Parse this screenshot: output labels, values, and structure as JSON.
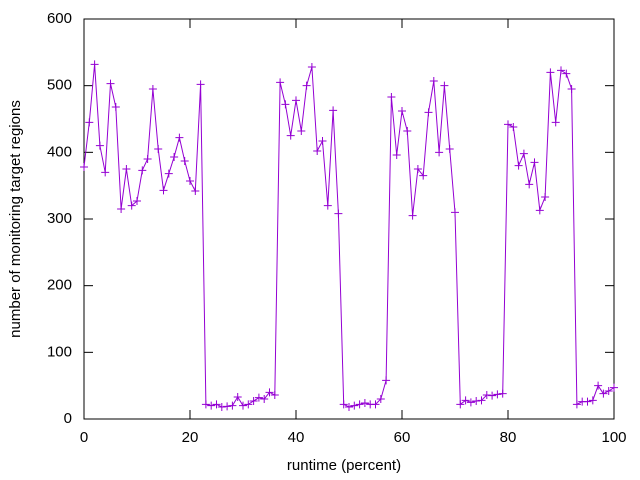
{
  "chart_data": {
    "type": "line",
    "xlabel": "runtime (percent)",
    "ylabel": "number of monitoring target regions",
    "xlim": [
      0,
      100
    ],
    "xticks": [
      0,
      20,
      40,
      60,
      80,
      100
    ],
    "ylim": [
      0,
      600
    ],
    "yticks": [
      0,
      100,
      200,
      300,
      400,
      500,
      600
    ],
    "color": "#9400d3",
    "marker": "plus",
    "x": [
      0,
      1,
      2,
      3,
      4,
      5,
      6,
      7,
      8,
      9,
      10,
      11,
      12,
      13,
      14,
      15,
      16,
      17,
      18,
      19,
      20,
      21,
      22,
      23,
      24,
      25,
      26,
      27,
      28,
      29,
      30,
      31,
      32,
      33,
      34,
      35,
      36,
      37,
      38,
      39,
      40,
      41,
      42,
      43,
      44,
      45,
      46,
      47,
      48,
      49,
      50,
      51,
      52,
      53,
      54,
      55,
      56,
      57,
      58,
      59,
      60,
      61,
      62,
      63,
      64,
      65,
      66,
      67,
      68,
      69,
      70,
      71,
      72,
      73,
      74,
      75,
      76,
      77,
      78,
      79,
      80,
      81,
      82,
      83,
      84,
      85,
      86,
      87,
      88,
      89,
      90,
      91,
      92,
      93,
      94,
      95,
      96,
      97,
      98,
      99,
      100
    ],
    "values": [
      378,
      445,
      532,
      410,
      370,
      503,
      468,
      315,
      375,
      320,
      327,
      373,
      390,
      495,
      405,
      343,
      368,
      393,
      422,
      387,
      357,
      342,
      502,
      22,
      20,
      22,
      18,
      19,
      20,
      33,
      20,
      22,
      27,
      32,
      30,
      40,
      36,
      505,
      472,
      425,
      478,
      432,
      500,
      528,
      402,
      417,
      320,
      463,
      308,
      22,
      18,
      20,
      22,
      24,
      22,
      22,
      30,
      58,
      483,
      396,
      462,
      432,
      305,
      375,
      365,
      460,
      507,
      400,
      500,
      405,
      310,
      22,
      28,
      25,
      27,
      28,
      36,
      35,
      37,
      38,
      442,
      438,
      380,
      398,
      352,
      385,
      313,
      333,
      520,
      445,
      523,
      518,
      495,
      22,
      26,
      26,
      28,
      50,
      38,
      42,
      47
    ]
  }
}
